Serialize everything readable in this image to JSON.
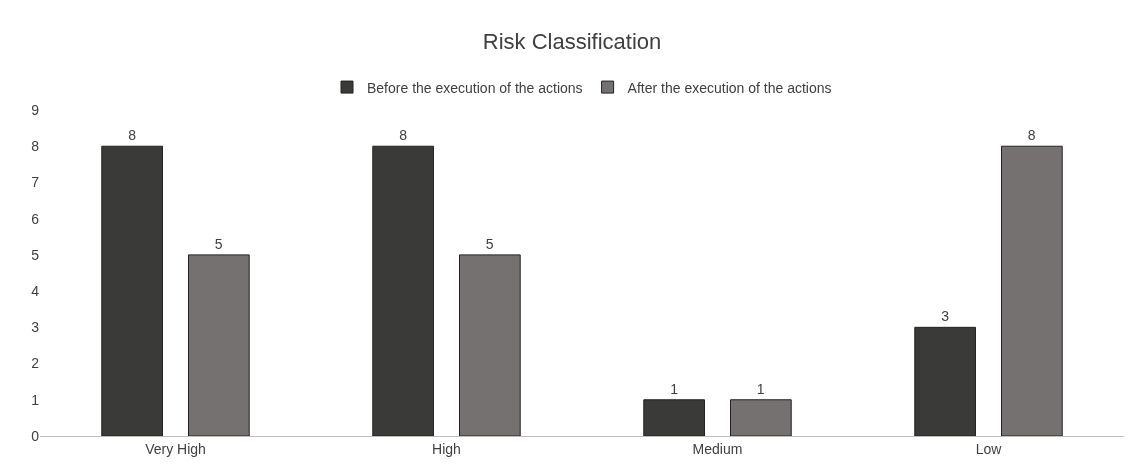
{
  "chart_data": {
    "type": "bar",
    "title": "Risk Classification",
    "categories": [
      "Very High",
      "High",
      "Medium",
      "Low"
    ],
    "series": [
      {
        "name": "Before the execution of the actions",
        "color": "#3a3a38",
        "values": [
          8,
          8,
          1,
          3
        ]
      },
      {
        "name": "After the execution of the actions",
        "color": "#767171",
        "values": [
          5,
          5,
          1,
          8
        ]
      }
    ],
    "ylim": [
      0,
      9
    ],
    "yticks": [
      0,
      1,
      2,
      3,
      4,
      5,
      6,
      7,
      8,
      9
    ],
    "legend": "top",
    "data_labels": true
  }
}
